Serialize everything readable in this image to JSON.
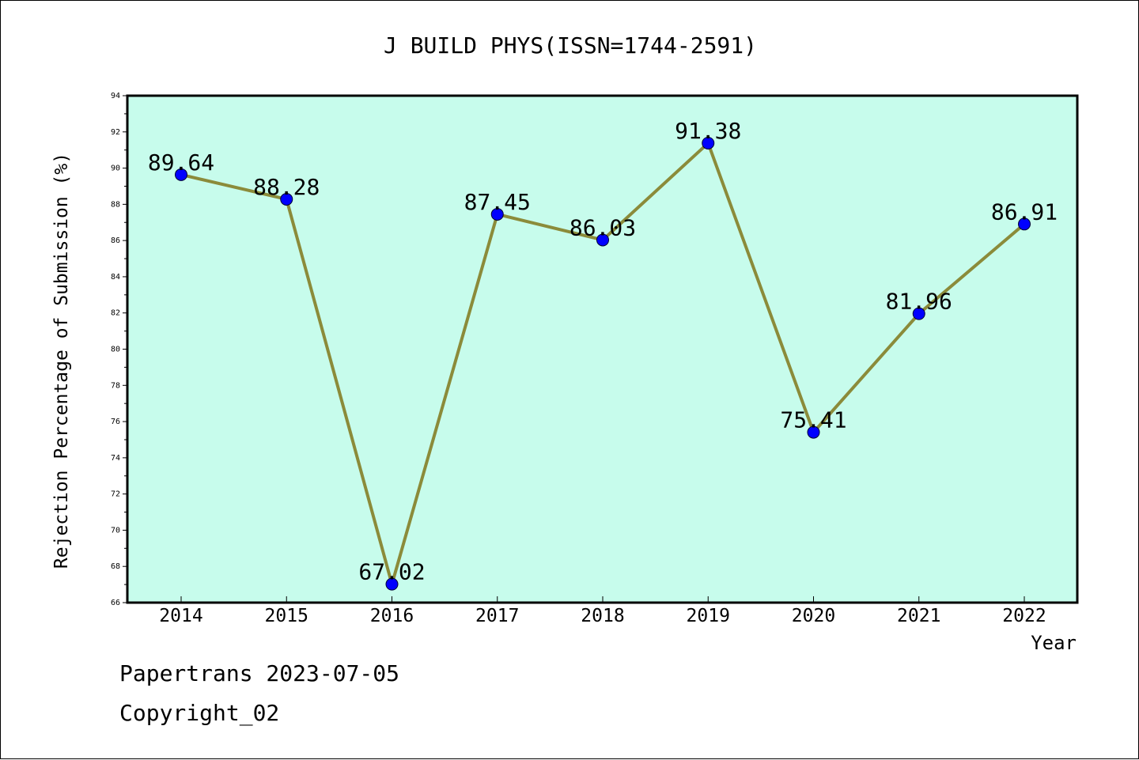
{
  "chart_data": {
    "type": "line",
    "title": "J BUILD PHYS(ISSN=1744-2591)",
    "xlabel": "Year",
    "ylabel": "Rejection Percentage of Submission (%)",
    "categories": [
      "2014",
      "2015",
      "2016",
      "2017",
      "2018",
      "2019",
      "2020",
      "2021",
      "2022"
    ],
    "series": [
      {
        "values": [
          89.64,
          88.28,
          67.02,
          87.45,
          86.03,
          91.38,
          75.41,
          81.96,
          86.91
        ]
      }
    ],
    "data_labels": [
      "89.64",
      "88.28",
      "67.02",
      "87.45",
      "86.03",
      "91.38",
      "75.41",
      "81.96",
      "86.91"
    ],
    "ylim": [
      66,
      94
    ],
    "yticks": [
      "66",
      "68",
      "70",
      "72",
      "74",
      "76",
      "78",
      "80",
      "82",
      "84",
      "86",
      "88",
      "90",
      "92",
      "94"
    ],
    "grid": false,
    "colors": {
      "plot_background": "#c7fcec",
      "line": "#8b8b3a",
      "marker": "#0000ff"
    }
  },
  "footer": {
    "line1": "Papertrans 2023-07-05",
    "line2": "Copyright_02"
  }
}
